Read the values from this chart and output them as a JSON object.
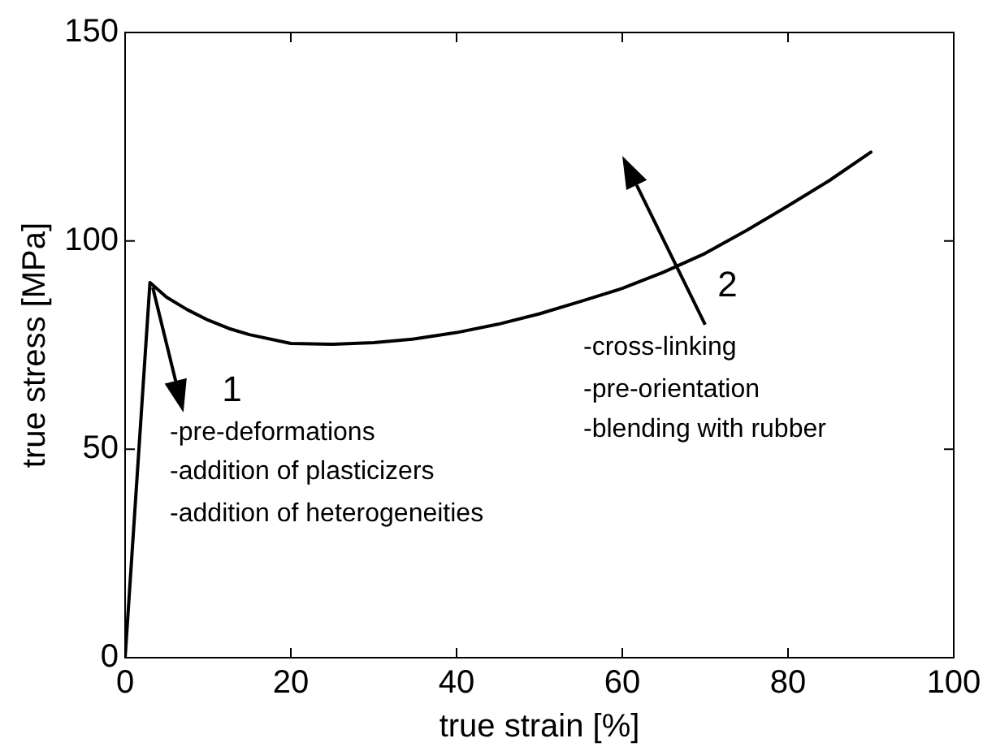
{
  "chart_data": {
    "type": "line",
    "xlabel": "true strain [%]",
    "ylabel": "true stress [MPa]",
    "x": [
      0,
      3,
      5,
      7.5,
      10,
      12.5,
      15,
      20,
      25,
      30,
      35,
      40,
      45,
      50,
      55,
      60,
      65,
      70,
      75,
      80,
      85,
      90
    ],
    "series": [
      {
        "color": "#000000",
        "values": [
          0,
          90,
          86.5,
          83.5,
          81,
          79,
          77.5,
          75.4,
          75.2,
          75.6,
          76.5,
          78,
          80,
          82.5,
          85.5,
          88.6,
          92.5,
          97,
          102.5,
          108.4,
          114.5,
          121.3
        ]
      }
    ],
    "xlim": [
      0,
      100
    ],
    "xticks": [
      0,
      20,
      40,
      60,
      80,
      100
    ],
    "ylim": [
      0,
      150
    ],
    "yticks": [
      0,
      50,
      100,
      150
    ],
    "grid": false,
    "legend": false,
    "marker": "none",
    "line_style": "solid",
    "annotations": [
      "1",
      "-pre-deformations",
      "-addition of plasticizers",
      "-addition of heterogeneities",
      "2",
      "-cross-linking",
      "-pre-orientation",
      "-blending with rubber"
    ]
  }
}
